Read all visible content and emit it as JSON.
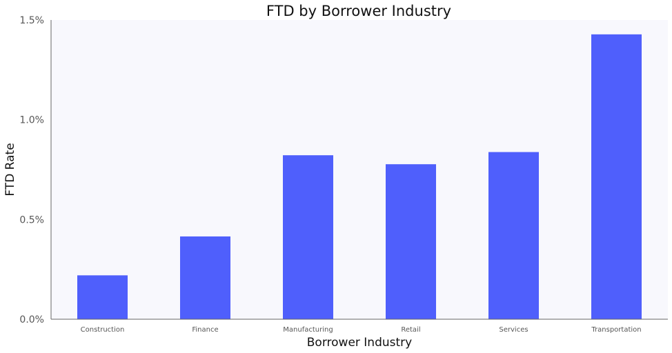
{
  "chart_data": {
    "type": "bar",
    "title": "FTD by Borrower Industry",
    "xlabel": "Borrower Industry",
    "ylabel": "FTD Rate",
    "categories": [
      "Construction",
      "Finance",
      "Manufacturing",
      "Retail",
      "Services",
      "Transportation"
    ],
    "values": [
      0.0022,
      0.00415,
      0.00822,
      0.00777,
      0.00838,
      0.01428
    ],
    "ylim": [
      0,
      0.015
    ],
    "yticks": [
      0,
      0.005,
      0.01,
      0.015
    ],
    "ytick_labels": [
      "0.0%",
      "0.5%",
      "1.0%",
      "1.5%"
    ],
    "grid": false,
    "legend": "none",
    "colors": {
      "bar": "#4f5ffc",
      "plot_background": "#f8f8fd",
      "axis": "#666666"
    }
  }
}
